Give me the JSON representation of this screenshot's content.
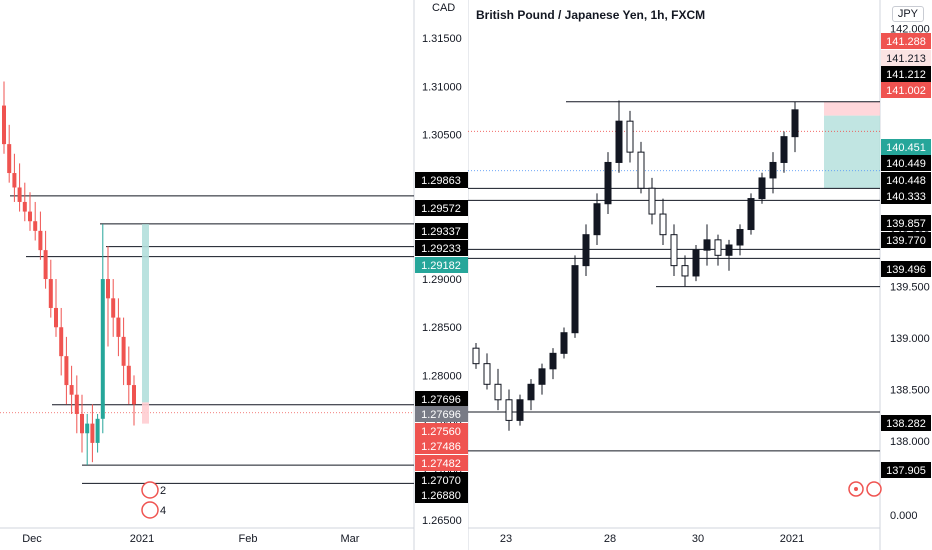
{
  "left_chart": {
    "currency": "CAD",
    "y_ticks": [
      "1.31500",
      "1.31000",
      "1.30500",
      "1.30000",
      "1.29500",
      "1.29000",
      "1.28500",
      "1.28000",
      "1.27500",
      "1.27000",
      "1.26500"
    ],
    "x_ticks": [
      "Dec",
      "2021",
      "Feb",
      "Mar"
    ],
    "price_labels": [
      {
        "text": "1.29863",
        "value": 1.29863,
        "bg": "#000000",
        "fg": "#ffffff"
      },
      {
        "text": "1.29572",
        "value": 1.29572,
        "bg": "#000000",
        "fg": "#ffffff"
      },
      {
        "text": "1.29337",
        "value": 1.29337,
        "bg": "#000000",
        "fg": "#ffffff"
      },
      {
        "text": "1.29233",
        "value": 1.29233,
        "bg": "#000000",
        "fg": "#ffffff"
      },
      {
        "text": "1.29182",
        "value": 1.29182,
        "bg": "#26a69a",
        "fg": "#ffffff"
      },
      {
        "text": "1.27696",
        "value": 1.27696,
        "bg": "#000000",
        "fg": "#ffffff"
      },
      {
        "text": "1.27696",
        "value": 1.27696,
        "bg": "#787b86",
        "fg": "#ffffff"
      },
      {
        "text": "1.27560",
        "value": 1.2756,
        "bg": "#ef5350",
        "fg": "#ffffff"
      },
      {
        "text": "1.27486",
        "value": 1.27486,
        "bg": "#ef5350",
        "fg": "#ffffff"
      },
      {
        "text": "1.27482",
        "value": 1.27482,
        "bg": "#ef5350",
        "fg": "#ffffff"
      },
      {
        "text": "1.27070",
        "value": 1.2707,
        "bg": "#000000",
        "fg": "#ffffff"
      },
      {
        "text": "1.26880",
        "value": 1.2688,
        "bg": "#000000",
        "fg": "#ffffff"
      }
    ],
    "marker_text": [
      "2",
      "4"
    ]
  },
  "right_chart": {
    "title": "British Pound / Japanese Yen, 1h, FXCM",
    "currency_badge": "JPY",
    "y_ticks": [
      "142.000",
      "141.500",
      "140.500",
      "140.000",
      "139.500",
      "139.000",
      "138.500",
      "138.000",
      "0.000"
    ],
    "x_ticks": [
      "23",
      "28",
      "30",
      "2021"
    ],
    "price_labels": [
      {
        "text": "141.288",
        "value": 141.288,
        "bg": "#ef5350",
        "fg": "#ffffff"
      },
      {
        "text": "141.213",
        "value": 141.213,
        "bg": "#fbe3e3",
        "fg": "#131722"
      },
      {
        "text": "141.212",
        "value": 141.212,
        "bg": "#000000",
        "fg": "#ffffff"
      },
      {
        "text": "141.002",
        "value": 141.002,
        "bg": "#ef5350",
        "fg": "#ffffff"
      },
      {
        "text": "140.451",
        "value": 140.451,
        "bg": "#26a69a",
        "fg": "#ffffff"
      },
      {
        "text": "140.449",
        "value": 140.449,
        "bg": "#000000",
        "fg": "#ffffff"
      },
      {
        "text": "140.448",
        "value": 140.448,
        "bg": "#000000",
        "fg": "#ffffff"
      },
      {
        "text": "140.333",
        "value": 140.333,
        "bg": "#000000",
        "fg": "#ffffff"
      },
      {
        "text": "139.857",
        "value": 139.857,
        "bg": "#000000",
        "fg": "#ffffff"
      },
      {
        "text": "139.770",
        "value": 139.77,
        "bg": "#000000",
        "fg": "#ffffff"
      },
      {
        "text": "139.496",
        "value": 139.496,
        "bg": "#000000",
        "fg": "#ffffff"
      },
      {
        "text": "138.282",
        "value": 138.282,
        "bg": "#000000",
        "fg": "#ffffff"
      },
      {
        "text": "137.905",
        "value": 137.905,
        "bg": "#000000",
        "fg": "#ffffff"
      }
    ]
  },
  "chart_data": [
    {
      "type": "candlestick",
      "currency": "CAD",
      "y_range": [
        1.265,
        1.3175
      ],
      "x_ticks": [
        "Dec",
        "2021",
        "Feb",
        "Mar"
      ],
      "candles": [
        [
          1.308,
          1.3105,
          1.303,
          1.304
        ],
        [
          1.304,
          1.306,
          1.3,
          1.301
        ],
        [
          1.301,
          1.303,
          1.298,
          1.2995
        ],
        [
          1.2995,
          1.302,
          1.297,
          1.298
        ],
        [
          1.298,
          1.3,
          1.296,
          1.297
        ],
        [
          1.297,
          1.299,
          1.295,
          1.296
        ],
        [
          1.296,
          1.298,
          1.294,
          1.295
        ],
        [
          1.295,
          1.297,
          1.292,
          1.293
        ],
        [
          1.293,
          1.295,
          1.289,
          1.29
        ],
        [
          1.29,
          1.292,
          1.286,
          1.287
        ],
        [
          1.287,
          1.29,
          1.284,
          1.285
        ],
        [
          1.285,
          1.287,
          1.28,
          1.282
        ],
        [
          1.282,
          1.284,
          1.277,
          1.279
        ],
        [
          1.279,
          1.281,
          1.276,
          1.278
        ],
        [
          1.278,
          1.28,
          1.274,
          1.276
        ],
        [
          1.276,
          1.278,
          1.272,
          1.274
        ],
        [
          1.274,
          1.276,
          1.2707,
          1.275
        ],
        [
          1.275,
          1.277,
          1.271,
          1.273
        ],
        [
          1.273,
          1.276,
          1.272,
          1.2755
        ],
        [
          1.2755,
          1.2957,
          1.274,
          1.29
        ],
        [
          1.29,
          1.2934,
          1.283,
          1.288
        ],
        [
          1.288,
          1.29,
          1.284,
          1.286
        ],
        [
          1.286,
          1.288,
          1.282,
          1.284
        ],
        [
          1.284,
          1.286,
          1.279,
          1.281
        ],
        [
          1.281,
          1.283,
          1.277,
          1.279
        ],
        [
          1.279,
          1.28,
          1.2748,
          1.277
        ]
      ],
      "levels": [
        1.29863,
        1.29572,
        1.29337,
        1.29233,
        1.27696,
        1.2707,
        1.2688
      ]
    },
    {
      "type": "candlestick",
      "title": "British Pound / Japanese Yen, 1h, FXCM",
      "currency": "JPY",
      "y_range": [
        137.7,
        142.1
      ],
      "x_ticks": [
        "23",
        "28",
        "30",
        "2021"
      ],
      "candles": [
        [
          138.9,
          138.95,
          138.7,
          138.75
        ],
        [
          138.75,
          138.85,
          138.5,
          138.55
        ],
        [
          138.55,
          138.7,
          138.3,
          138.4
        ],
        [
          138.4,
          138.5,
          138.1,
          138.2
        ],
        [
          138.2,
          138.45,
          138.15,
          138.4
        ],
        [
          138.4,
          138.6,
          138.3,
          138.55
        ],
        [
          138.55,
          138.75,
          138.45,
          138.7
        ],
        [
          138.7,
          138.9,
          138.6,
          138.85
        ],
        [
          138.85,
          139.1,
          138.8,
          139.05
        ],
        [
          139.05,
          139.8,
          139.0,
          139.7
        ],
        [
          139.7,
          140.1,
          139.6,
          140.0
        ],
        [
          140.0,
          140.4,
          139.9,
          140.3
        ],
        [
          140.3,
          140.8,
          140.2,
          140.7
        ],
        [
          140.7,
          141.3,
          140.6,
          141.1
        ],
        [
          141.1,
          141.2,
          140.7,
          140.8
        ],
        [
          140.8,
          140.9,
          140.4,
          140.45
        ],
        [
          140.45,
          140.55,
          140.1,
          140.2
        ],
        [
          140.2,
          140.35,
          139.9,
          140.0
        ],
        [
          140.0,
          140.1,
          139.6,
          139.7
        ],
        [
          139.7,
          139.8,
          139.5,
          139.6
        ],
        [
          139.6,
          139.9,
          139.55,
          139.85
        ],
        [
          139.85,
          140.1,
          139.7,
          139.95
        ],
        [
          139.95,
          140.0,
          139.7,
          139.8
        ],
        [
          139.8,
          139.95,
          139.65,
          139.9
        ],
        [
          139.9,
          140.1,
          139.8,
          140.05
        ],
        [
          140.05,
          140.4,
          140.0,
          140.35
        ],
        [
          140.35,
          140.6,
          140.3,
          140.55
        ],
        [
          140.55,
          140.8,
          140.4,
          140.7
        ],
        [
          140.7,
          141.0,
          140.6,
          140.95
        ],
        [
          140.95,
          141.29,
          140.8,
          141.21
        ]
      ],
      "levels": [
        141.288,
        140.449,
        140.333,
        139.857,
        139.77,
        139.496,
        138.282,
        137.905
      ]
    }
  ]
}
